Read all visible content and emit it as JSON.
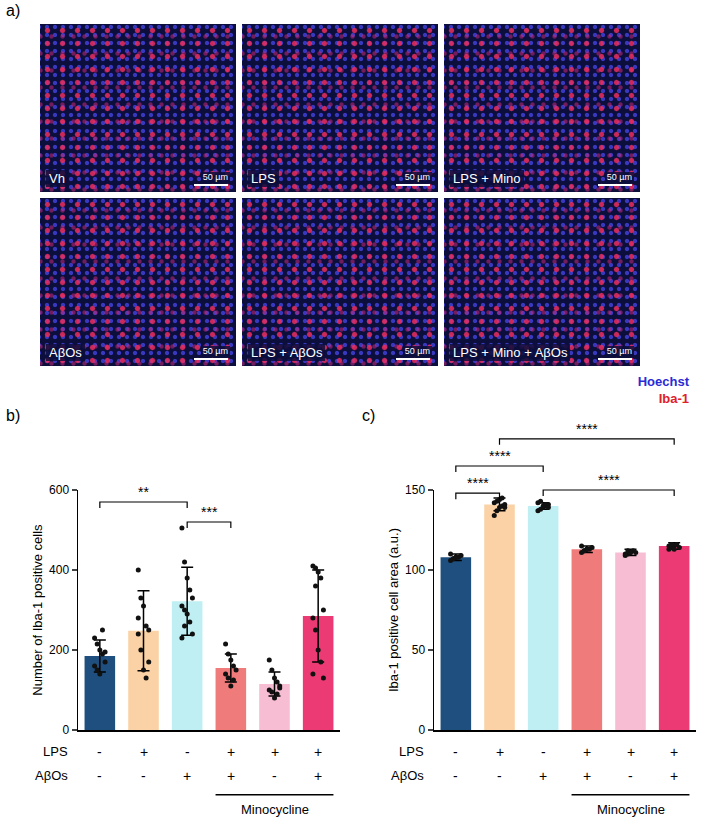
{
  "panel_a": {
    "label": "a)",
    "images": [
      {
        "label": "Vh",
        "scale_bar": "50 µm"
      },
      {
        "label": "LPS",
        "scale_bar": "50 µm"
      },
      {
        "label": "LPS + Mino",
        "scale_bar": "50 µm"
      },
      {
        "label": "AβOs",
        "scale_bar": "50 µm"
      },
      {
        "label": "LPS + AβOs",
        "scale_bar": "50 µm"
      },
      {
        "label": "LPS + Mino + AβOs",
        "scale_bar": "50 µm"
      }
    ],
    "channels": [
      {
        "name": "Hoechst",
        "color": "#2b2bd6"
      },
      {
        "name": "Iba-1",
        "color": "#e0202a"
      }
    ]
  },
  "chart_data": [
    {
      "panel": "b)",
      "type": "bar",
      "ylabel": "Number of Iba-1 positive cells",
      "categories": [
        null,
        null,
        null,
        null,
        null,
        null
      ],
      "values": [
        185,
        248,
        322,
        155,
        115,
        285
      ],
      "errors": [
        40,
        100,
        85,
        35,
        30,
        115
      ],
      "points": [
        [
          230,
          215,
          200,
          190,
          170,
          160,
          150,
          140,
          250,
          195
        ],
        [
          400,
          330,
          310,
          260,
          250,
          240,
          200,
          150,
          130,
          170,
          280
        ],
        [
          505,
          420,
          380,
          350,
          330,
          310,
          300,
          290,
          270,
          240,
          230,
          260
        ],
        [
          215,
          190,
          175,
          160,
          150,
          140,
          130,
          110,
          125
        ],
        [
          175,
          150,
          130,
          120,
          110,
          100,
          95,
          80,
          90,
          105
        ],
        [
          410,
          405,
          395,
          380,
          300,
          280,
          250,
          200,
          170,
          130,
          140,
          360
        ]
      ],
      "colors": [
        "#1e4f7e",
        "#fad2a5",
        "#bfeff2",
        "#f07b7b",
        "#f7bdd3",
        "#ec3b74"
      ],
      "ylim": [
        0,
        600
      ],
      "yticks": [
        0,
        200,
        400,
        600
      ],
      "grid": false,
      "tick_labels": "y",
      "conditions": [
        {
          "label": "LPS",
          "marks": [
            "-",
            "+",
            "-",
            "+",
            "+",
            "+"
          ]
        },
        {
          "label": "AβOs",
          "marks": [
            "-",
            "-",
            "+",
            "+",
            "-",
            "+"
          ]
        }
      ],
      "treatment": {
        "label": "Minocycline",
        "from": 3,
        "to": 5
      },
      "comparisons": [
        {
          "from": 0,
          "to": 2,
          "y": 570,
          "label": "**"
        },
        {
          "from": 2,
          "to": 3,
          "y": 520,
          "label": "***"
        }
      ]
    },
    {
      "panel": "c)",
      "type": "bar",
      "ylabel": "Iba-1 positive cell area (a.u.)",
      "categories": [
        null,
        null,
        null,
        null,
        null,
        null
      ],
      "values": [
        108,
        141,
        140,
        113,
        111,
        115
      ],
      "errors": [
        2,
        4,
        2,
        2,
        2,
        2
      ],
      "points": [
        [
          106,
          107,
          108,
          108,
          109,
          110,
          107,
          108
        ],
        [
          134,
          137,
          139,
          140,
          141,
          142,
          143,
          144,
          145,
          139
        ],
        [
          137,
          138,
          139,
          140,
          141,
          142,
          143,
          140,
          141,
          139
        ],
        [
          111,
          112,
          113,
          113,
          114,
          115,
          112,
          113
        ],
        [
          109,
          110,
          111,
          112,
          111,
          110,
          112,
          111
        ],
        [
          113,
          114,
          115,
          116,
          114,
          115,
          116,
          113
        ]
      ],
      "colors": [
        "#1e4f7e",
        "#fad2a5",
        "#bfeff2",
        "#f07b7b",
        "#f7bdd3",
        "#ec3b74"
      ],
      "ylim": [
        0,
        150
      ],
      "yticks": [
        0,
        50,
        100,
        150
      ],
      "grid": false,
      "tick_labels": "y",
      "conditions": [
        {
          "label": "LPS",
          "marks": [
            "-",
            "+",
            "-",
            "+",
            "+",
            "+"
          ]
        },
        {
          "label": "AβOs",
          "marks": [
            "-",
            "-",
            "+",
            "+",
            "-",
            "+"
          ]
        }
      ],
      "treatment": {
        "label": "Minocycline",
        "from": 3,
        "to": 5
      },
      "comparisons": [
        {
          "from": 0,
          "to": 1,
          "y": 148,
          "label": "****"
        },
        {
          "from": 2,
          "to": 5,
          "y": 150,
          "label": "****"
        },
        {
          "from": 0,
          "to": 2,
          "y": 165,
          "label": "****"
        },
        {
          "from": 1,
          "to": 5,
          "y": 182,
          "label": "****"
        }
      ]
    }
  ]
}
